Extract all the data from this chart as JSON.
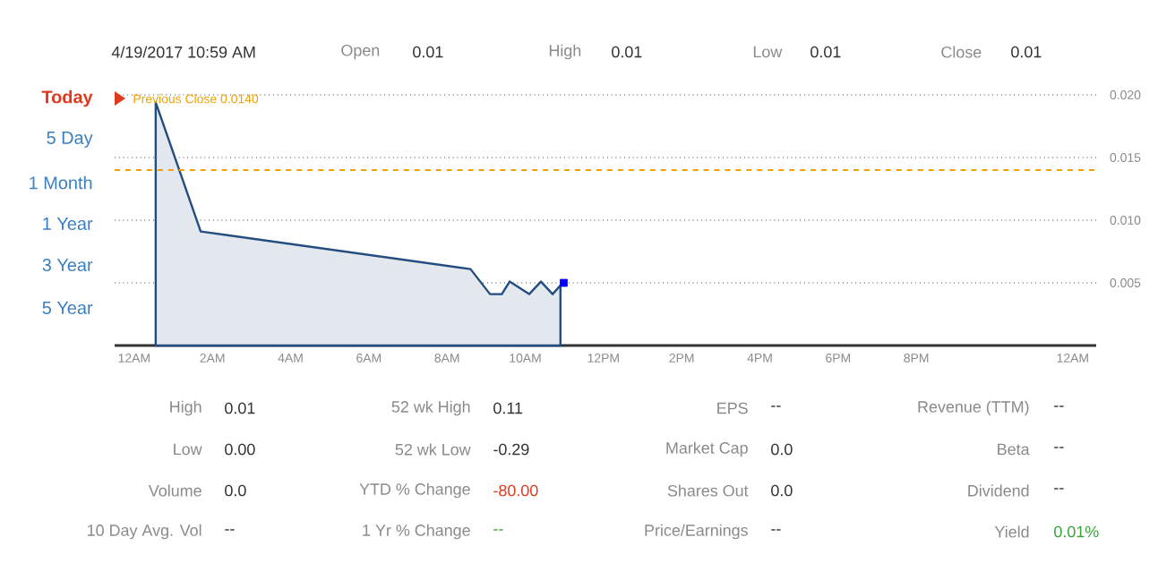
{
  "chart_data": {
    "type": "area",
    "series": [
      {
        "color": "#234d80",
        "x": [
          "2017-04-19T00:33",
          "2017-04-19T01:42",
          "2017-04-19T08:36",
          "2017-04-19T09:06",
          "2017-04-19T09:24",
          "2017-04-19T09:36",
          "2017-04-19T10:06",
          "2017-04-19T10:24",
          "2017-04-19T10:42",
          "2017-04-19T10:54"
        ],
        "values": [
          0.0194,
          0.0091,
          0.0061,
          0.0041,
          0.0041,
          0.0051,
          0.0041,
          0.0051,
          0.0041,
          0.0048
        ]
      },
      {
        "type": "scatter",
        "marker": "square",
        "color": "#0000ff",
        "x": [
          "2017-04-19T10:59"
        ],
        "values": [
          0.005
        ]
      }
    ],
    "xlim": [
      "2017-04-18T23:30",
      "2017-04-20T00:36"
    ],
    "ylim": [
      0,
      0.02
    ],
    "xticks": [
      {
        "value": "2017-04-19T00:00",
        "label": "12AM"
      },
      {
        "value": "2017-04-19T02:00",
        "label": "2AM"
      },
      {
        "value": "2017-04-19T04:00",
        "label": "4AM"
      },
      {
        "value": "2017-04-19T06:00",
        "label": "6AM"
      },
      {
        "value": "2017-04-19T08:00",
        "label": "8AM"
      },
      {
        "value": "2017-04-19T10:00",
        "label": "10AM"
      },
      {
        "value": "2017-04-19T12:00",
        "label": "12PM"
      },
      {
        "value": "2017-04-19T14:00",
        "label": "2PM"
      },
      {
        "value": "2017-04-19T16:00",
        "label": "4PM"
      },
      {
        "value": "2017-04-19T18:00",
        "label": "6PM"
      },
      {
        "value": "2017-04-19T20:00",
        "label": "8PM"
      },
      {
        "value": "2017-04-20T00:00",
        "label": "12AM"
      }
    ],
    "yticks": [
      {
        "value": 0.005,
        "label": "0.005"
      },
      {
        "value": 0.01,
        "label": "0.010"
      },
      {
        "value": 0.015,
        "label": "0.015"
      },
      {
        "value": 0.02,
        "label": "0.020"
      }
    ],
    "grid": "y",
    "ref_lines": [
      {
        "axis": "y",
        "value": 0.014,
        "label": "Previous Close 0.0140",
        "color": "#f0a000",
        "line_style": "dashed"
      }
    ],
    "annotations": [
      "4/19/2017 10:59 AM",
      "Open",
      "0.01",
      "High",
      "0.01",
      "Low",
      "0.01",
      "Close",
      "0.01",
      "Today",
      "5 Day",
      "1 Month",
      "1 Year",
      "3 Year",
      "5 Year",
      "High",
      "0.01",
      "52 wk High",
      "0.11",
      "EPS",
      "--",
      "Revenue (TTM)",
      "--",
      "Low",
      "0.00",
      "52 wk Low",
      "-0.29",
      "Market Cap",
      "0.0",
      "Beta",
      "--",
      "Volume",
      "0.0",
      "YTD % Change",
      "-80.00",
      "Shares Out",
      "0.0",
      "Dividend",
      "--",
      "10 Day Avg. Vol",
      "--",
      "1 Yr % Change",
      "--",
      "Price/Earnings",
      "--",
      "Yield",
      "0.01%"
    ]
  }
}
